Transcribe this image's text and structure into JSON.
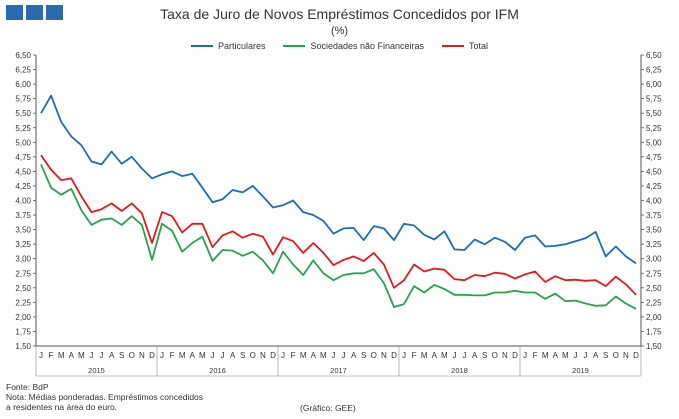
{
  "header": {
    "title": "Taxa de Juro de Novos Empréstimos Concedidos por IFM",
    "subtitle": "(%)"
  },
  "footer": {
    "source": "Fonte: BdP",
    "note_line1": "Nota: Médias ponderadas. Empréstimos concedidos",
    "note_line2": "a residentes na área do euro.",
    "credit": "(Gráfico: GEE)"
  },
  "chart_data": {
    "type": "line",
    "title": "Taxa de Juro de Novos Empréstimos Concedidos por IFM",
    "subtitle": "(%)",
    "ylim": [
      1.5,
      6.5
    ],
    "yticks": [
      "1,50",
      "1,75",
      "2,00",
      "2,25",
      "2,50",
      "2,75",
      "3,00",
      "3,25",
      "3,50",
      "3,75",
      "4,00",
      "4,25",
      "4,50",
      "4,75",
      "5,00",
      "5,25",
      "5,50",
      "5,75",
      "6,00",
      "6,25",
      "6,50"
    ],
    "grid": false,
    "legend_position": "top-center",
    "month_labels": [
      "J",
      "F",
      "M",
      "A",
      "M",
      "J",
      "J",
      "A",
      "S",
      "O",
      "N",
      "D"
    ],
    "years": [
      "2015",
      "2016",
      "2017",
      "2018",
      "2019"
    ],
    "series": [
      {
        "name": "Particulares",
        "color": "#1f6cb0",
        "values": [
          5.5,
          5.8,
          5.35,
          5.1,
          4.95,
          4.67,
          4.62,
          4.84,
          4.63,
          4.75,
          4.55,
          4.38,
          4.45,
          4.5,
          4.42,
          4.46,
          4.22,
          3.97,
          4.02,
          4.18,
          4.14,
          4.25,
          4.07,
          3.88,
          3.92,
          4.0,
          3.8,
          3.75,
          3.65,
          3.43,
          3.52,
          3.53,
          3.32,
          3.56,
          3.52,
          3.32,
          3.6,
          3.57,
          3.41,
          3.33,
          3.47,
          3.16,
          3.15,
          3.33,
          3.25,
          3.36,
          3.29,
          3.15,
          3.36,
          3.4,
          3.21,
          3.22,
          3.25,
          3.3,
          3.35,
          3.46,
          3.04,
          3.21,
          3.04,
          2.92
        ]
      },
      {
        "name": "Sociedades não Financeiras",
        "color": "#2aa14b",
        "values": [
          4.62,
          4.22,
          4.1,
          4.2,
          3.83,
          3.58,
          3.67,
          3.69,
          3.58,
          3.73,
          3.58,
          2.98,
          3.6,
          3.48,
          3.12,
          3.27,
          3.38,
          2.96,
          3.15,
          3.14,
          3.05,
          3.12,
          2.97,
          2.75,
          3.12,
          2.9,
          2.72,
          2.97,
          2.75,
          2.63,
          2.72,
          2.75,
          2.75,
          2.82,
          2.58,
          2.17,
          2.22,
          2.53,
          2.42,
          2.55,
          2.48,
          2.38,
          2.38,
          2.37,
          2.37,
          2.42,
          2.42,
          2.45,
          2.42,
          2.42,
          2.31,
          2.4,
          2.27,
          2.28,
          2.23,
          2.19,
          2.2,
          2.35,
          2.23,
          2.14
        ]
      },
      {
        "name": "Total",
        "color": "#e11a1a",
        "values": [
          4.78,
          4.53,
          4.35,
          4.38,
          4.07,
          3.8,
          3.85,
          3.95,
          3.82,
          3.95,
          3.78,
          3.27,
          3.8,
          3.73,
          3.45,
          3.6,
          3.6,
          3.2,
          3.4,
          3.47,
          3.36,
          3.43,
          3.38,
          3.07,
          3.37,
          3.3,
          3.1,
          3.27,
          3.1,
          2.89,
          2.98,
          3.04,
          2.96,
          3.1,
          2.9,
          2.5,
          2.63,
          2.9,
          2.78,
          2.83,
          2.81,
          2.65,
          2.63,
          2.72,
          2.7,
          2.76,
          2.74,
          2.66,
          2.73,
          2.78,
          2.6,
          2.7,
          2.63,
          2.64,
          2.62,
          2.63,
          2.53,
          2.69,
          2.56,
          2.38
        ]
      }
    ]
  }
}
